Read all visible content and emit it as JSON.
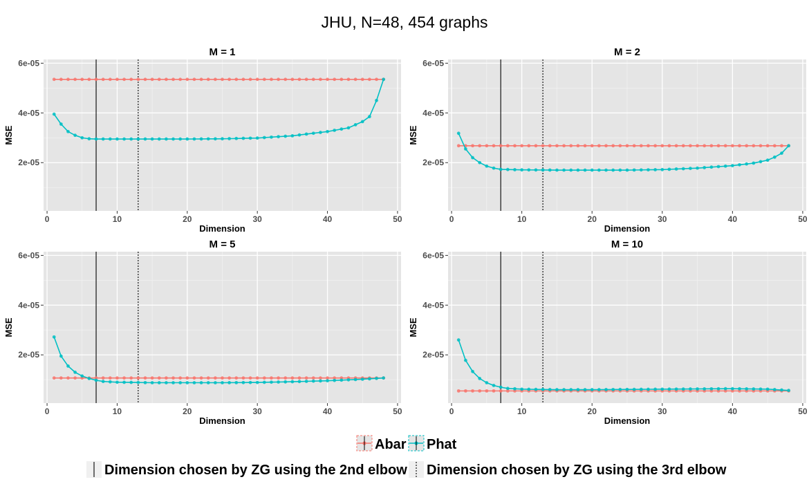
{
  "chart_data": {
    "type": "line",
    "title": "JHU, N=48, 454 graphs",
    "xlabel": "Dimension",
    "ylabel": "MSE",
    "xlim": [
      -0.5,
      50.5
    ],
    "ylim": [
      6e-07,
      6.15e-05
    ],
    "x_ticks": [
      0,
      10,
      20,
      30,
      40,
      50
    ],
    "y_ticks": [
      2e-05,
      4e-05,
      6e-05
    ],
    "y_tick_labels": [
      "2e-05",
      "4e-05",
      "6e-05"
    ],
    "grid": true,
    "legend_position": "bottom",
    "legend": {
      "series_entries": [
        {
          "name": "Abar",
          "color": "#f8766d"
        },
        {
          "name": "Phat",
          "color": "#00bfc4"
        }
      ],
      "vline_entries": [
        {
          "label": "Dimension chosen by ZG using the 2nd elbow",
          "style": "solid"
        },
        {
          "label": "Dimension chosen by ZG using the 3rd elbow",
          "style": "dotted"
        }
      ]
    },
    "vlines": {
      "elbow2": 7,
      "elbow3": 13
    },
    "panels": [
      {
        "title": "M = 1",
        "series": [
          {
            "name": "Abar",
            "color": "#f8766d",
            "x": [
              1,
              48
            ],
            "points": [
              [
                1,
                5.35e-05
              ],
              [
                48,
                5.35e-05
              ]
            ]
          },
          {
            "name": "Phat",
            "color": "#00bfc4",
            "x": [
              1,
              48
            ],
            "points": [
              [
                1,
                3.95e-05
              ],
              [
                2,
                3.55e-05
              ],
              [
                3,
                3.25e-05
              ],
              [
                4,
                3.1e-05
              ],
              [
                5,
                3e-05
              ],
              [
                6,
                2.96e-05
              ],
              [
                7,
                2.95e-05
              ],
              [
                10,
                2.95e-05
              ],
              [
                15,
                2.95e-05
              ],
              [
                20,
                2.95e-05
              ],
              [
                25,
                2.96e-05
              ],
              [
                30,
                2.99e-05
              ],
              [
                35,
                3.08e-05
              ],
              [
                40,
                3.25e-05
              ],
              [
                43,
                3.4e-05
              ],
              [
                45,
                3.65e-05
              ],
              [
                46,
                3.85e-05
              ],
              [
                47,
                4.5e-05
              ],
              [
                48,
                5.35e-05
              ]
            ]
          }
        ]
      },
      {
        "title": "M = 2",
        "series": [
          {
            "name": "Abar",
            "color": "#f8766d",
            "x": [
              1,
              48
            ],
            "points": [
              [
                1,
                2.68e-05
              ],
              [
                48,
                2.68e-05
              ]
            ]
          },
          {
            "name": "Phat",
            "color": "#00bfc4",
            "x": [
              1,
              48
            ],
            "points": [
              [
                1,
                3.18e-05
              ],
              [
                2,
                2.55e-05
              ],
              [
                3,
                2.2e-05
              ],
              [
                4,
                2e-05
              ],
              [
                5,
                1.86e-05
              ],
              [
                6,
                1.78e-05
              ],
              [
                7,
                1.73e-05
              ],
              [
                10,
                1.71e-05
              ],
              [
                15,
                1.7e-05
              ],
              [
                20,
                1.7e-05
              ],
              [
                25,
                1.7e-05
              ],
              [
                30,
                1.72e-05
              ],
              [
                35,
                1.78e-05
              ],
              [
                40,
                1.88e-05
              ],
              [
                43,
                1.98e-05
              ],
              [
                45,
                2.1e-05
              ],
              [
                46,
                2.22e-05
              ],
              [
                47,
                2.38e-05
              ],
              [
                48,
                2.68e-05
              ]
            ]
          }
        ]
      },
      {
        "title": "M = 5",
        "series": [
          {
            "name": "Abar",
            "color": "#f8766d",
            "x": [
              1,
              48
            ],
            "points": [
              [
                1,
                1.07e-05
              ],
              [
                48,
                1.07e-05
              ]
            ]
          },
          {
            "name": "Phat",
            "color": "#00bfc4",
            "x": [
              1,
              48
            ],
            "points": [
              [
                1,
                2.72e-05
              ],
              [
                2,
                1.95e-05
              ],
              [
                3,
                1.55e-05
              ],
              [
                4,
                1.3e-05
              ],
              [
                5,
                1.15e-05
              ],
              [
                6,
                1.05e-05
              ],
              [
                7,
                9.8e-06
              ],
              [
                8,
                9.3e-06
              ],
              [
                10,
                9e-06
              ],
              [
                15,
                8.8e-06
              ],
              [
                20,
                8.8e-06
              ],
              [
                25,
                8.8e-06
              ],
              [
                30,
                8.9e-06
              ],
              [
                35,
                9.2e-06
              ],
              [
                40,
                9.6e-06
              ],
              [
                45,
                1.02e-05
              ],
              [
                48,
                1.07e-05
              ]
            ]
          }
        ]
      },
      {
        "title": "M = 10",
        "series": [
          {
            "name": "Abar",
            "color": "#f8766d",
            "x": [
              1,
              48
            ],
            "points": [
              [
                1,
                5.5e-06
              ],
              [
                48,
                5.5e-06
              ]
            ]
          },
          {
            "name": "Phat",
            "color": "#00bfc4",
            "x": [
              1,
              48
            ],
            "points": [
              [
                1,
                2.6e-05
              ],
              [
                2,
                1.78e-05
              ],
              [
                3,
                1.33e-05
              ],
              [
                4,
                1.05e-05
              ],
              [
                5,
                8.8e-06
              ],
              [
                6,
                7.7e-06
              ],
              [
                7,
                7e-06
              ],
              [
                8,
                6.5e-06
              ],
              [
                10,
                6.2e-06
              ],
              [
                15,
                6e-06
              ],
              [
                20,
                6e-06
              ],
              [
                25,
                6.1e-06
              ],
              [
                30,
                6.2e-06
              ],
              [
                35,
                6.3e-06
              ],
              [
                40,
                6.4e-06
              ],
              [
                45,
                6.2e-06
              ],
              [
                48,
                5.7e-06
              ]
            ]
          }
        ]
      }
    ]
  }
}
